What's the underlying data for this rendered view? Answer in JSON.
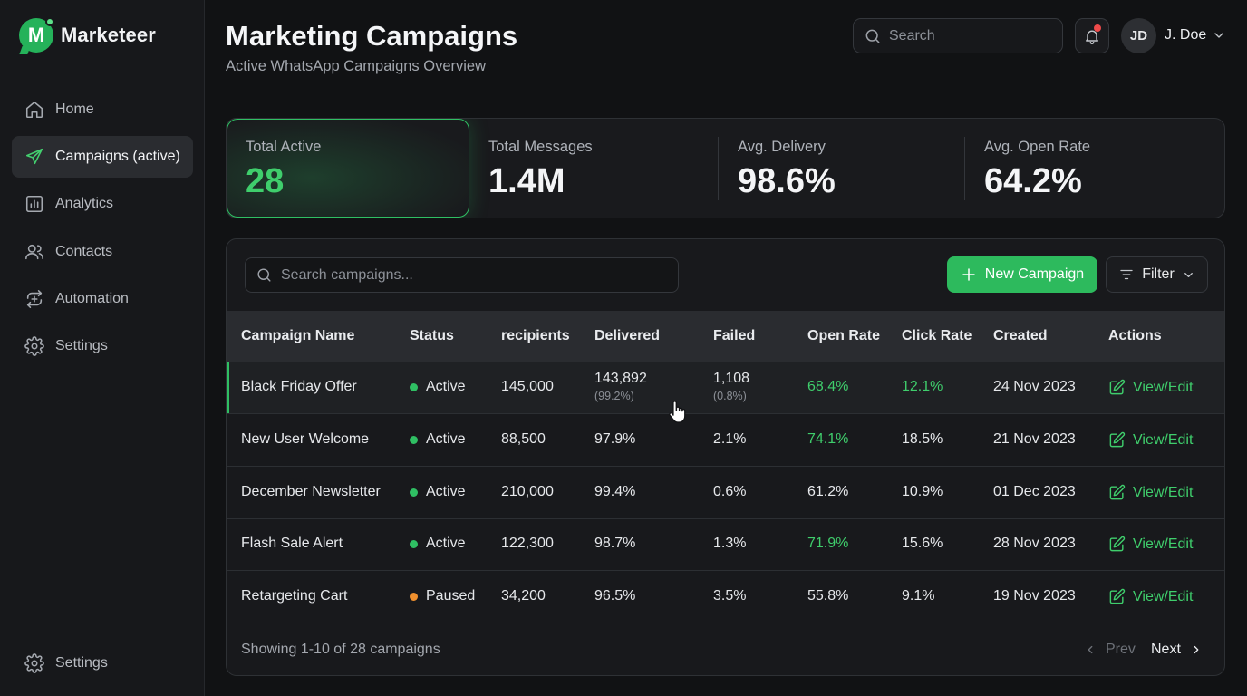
{
  "brand": {
    "logo_letter": "M",
    "name": "Marketeer",
    "color": "#25b25a"
  },
  "sidebar": {
    "items": [
      {
        "label": "Home",
        "icon": "home-icon",
        "active": false
      },
      {
        "label": "Campaigns (active)",
        "icon": "send-icon",
        "active": true
      },
      {
        "label": "Analytics",
        "icon": "bar-chart-icon",
        "active": false
      },
      {
        "label": "Contacts",
        "icon": "users-icon",
        "active": false
      },
      {
        "label": "Automation",
        "icon": "refresh-icon",
        "active": false
      },
      {
        "label": "Settings",
        "icon": "gear-icon",
        "active": false
      }
    ],
    "bottom": {
      "label": "Settings",
      "icon": "gear-icon"
    }
  },
  "header": {
    "title": "Marketing Campaigns",
    "subtitle": "Active WhatsApp Campaigns Overview",
    "search_placeholder": "Search",
    "notification_badge": true,
    "user": {
      "initials": "JD",
      "name": "J. Doe"
    }
  },
  "stats": [
    {
      "label": "Total Active",
      "value": "28"
    },
    {
      "label": "Total Messages",
      "value": "1.4M"
    },
    {
      "label": "Avg. Delivery",
      "value": "98.6%"
    },
    {
      "label": "Avg. Open Rate",
      "value": "64.2%"
    }
  ],
  "table": {
    "search_placeholder": "Search campaigns...",
    "new_button": "New Campaign",
    "filter_button": "Filter",
    "columns": [
      "Campaign Name",
      "Status",
      "recipients",
      "Delivered",
      "Failed",
      "Open Rate",
      "Click Rate",
      "Created",
      "Actions"
    ],
    "rows": [
      {
        "name": "Black Friday Offer",
        "status": "Active",
        "recipients": "145,000",
        "delivered": "143,892",
        "delivered_sub": "(99.2%)",
        "failed": "1,108",
        "failed_sub": "(0.8%)",
        "open_rate": "68.4%",
        "click_rate": "12.1%",
        "created": "24 Nov 2023",
        "action": "View/Edit"
      },
      {
        "name": "New User Welcome",
        "status": "Active",
        "recipients": "88,500",
        "delivered": "97.9%",
        "delivered_sub": "",
        "failed": "2.1%",
        "failed_sub": "",
        "open_rate": "74.1%",
        "click_rate": "18.5%",
        "created": "21 Nov 2023",
        "action": "View/Edit"
      },
      {
        "name": "December Newsletter",
        "status": "Active",
        "recipients": "210,000",
        "delivered": "99.4%",
        "delivered_sub": "",
        "failed": "0.6%",
        "failed_sub": "",
        "open_rate": "61.2%",
        "click_rate": "10.9%",
        "created": "01 Dec 2023",
        "action": "View/Edit"
      },
      {
        "name": "Flash Sale Alert",
        "status": "Active",
        "recipients": "122,300",
        "delivered": "98.7%",
        "delivered_sub": "",
        "failed": "1.3%",
        "failed_sub": "",
        "open_rate": "71.9%",
        "click_rate": "15.6%",
        "created": "28 Nov 2023",
        "action": "View/Edit"
      },
      {
        "name": "Retargeting Cart",
        "status": "Paused",
        "recipients": "34,200",
        "delivered": "96.5%",
        "delivered_sub": "",
        "failed": "3.5%",
        "failed_sub": "",
        "open_rate": "55.8%",
        "click_rate": "9.1%",
        "created": "19 Nov 2023",
        "action": "View/Edit"
      }
    ],
    "footer": "Showing 1-10 of 28 campaigns",
    "prev": "Prev",
    "next": "Next"
  },
  "colors": {
    "accent": "#2dba5d",
    "accent_text": "#3fce6c",
    "status_active": "#2fbf63",
    "status_paused": "#f0902e",
    "notification": "#ef4a4a"
  }
}
